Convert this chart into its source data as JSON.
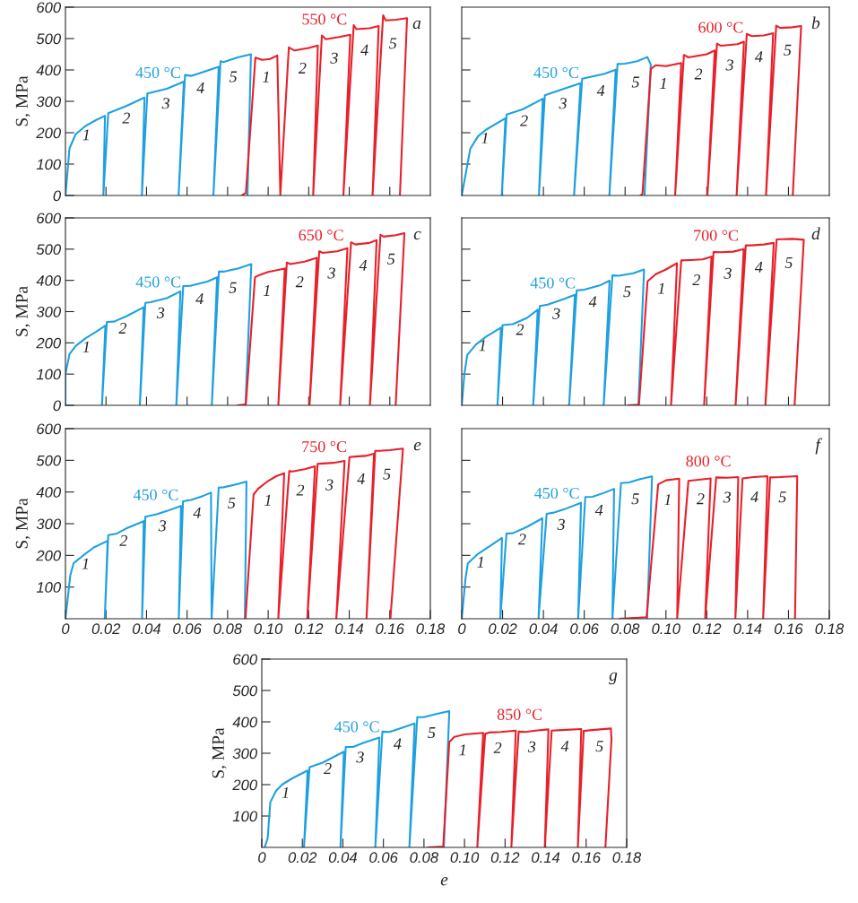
{
  "chart_data": [
    {
      "type": "line",
      "ylabel": "S, MPa",
      "xlim": [
        0,
        0.18
      ],
      "ylim": [
        0,
        600
      ],
      "tick_labels": "y",
      "xticks": [
        {
          "value": 0.02,
          "label": null
        },
        {
          "value": 0.04,
          "label": null
        },
        {
          "value": 0.06,
          "label": null
        },
        {
          "value": 0.08,
          "label": null
        },
        {
          "value": 0.1,
          "label": null
        },
        {
          "value": 0.12,
          "label": null
        },
        {
          "value": 0.14,
          "label": null
        },
        {
          "value": 0.16,
          "label": null
        }
      ],
      "yticks": [
        0,
        100,
        200,
        300,
        400,
        500,
        600
      ],
      "series": [
        {
          "name": "450 °C",
          "color": "#1ea0e0",
          "x": [
            0,
            0.002,
            0.005,
            0.01,
            0.015,
            0.0195,
            0.0187,
            0.0211,
            0.03,
            0.039,
            0.0377,
            0.0404,
            0.05,
            0.0584,
            0.0558,
            0.059,
            0.062,
            0.07,
            0.0756,
            0.073,
            0.0765,
            0.078,
            0.085,
            0.0915,
            0.0898
          ],
          "values": [
            0,
            150,
            195,
            222,
            240,
            254,
            0,
            262,
            285,
            312,
            0,
            325,
            340,
            363,
            0,
            384,
            381,
            398,
            410,
            0,
            428,
            425,
            440,
            450,
            0
          ]
        },
        {
          "name": "550 °C",
          "color": "#e8202a",
          "x": [
            0.087,
            0.089,
            0.0937,
            0.097,
            0.101,
            0.1045,
            0.106,
            0.1102,
            0.113,
            0.12,
            0.1245,
            0.1222,
            0.1265,
            0.1285,
            0.135,
            0.1405,
            0.1371,
            0.1422,
            0.1435,
            0.15,
            0.1545,
            0.1515,
            0.1567,
            0.158,
            0.163,
            0.1685,
            0.165
          ],
          "values": [
            0,
            8,
            439,
            432,
            435,
            446,
            0,
            472,
            462,
            470,
            478,
            0,
            510,
            498,
            505,
            512,
            0,
            543,
            530,
            533,
            540,
            0,
            574,
            558,
            560,
            565,
            0
          ]
        }
      ],
      "annotations": [
        "a",
        "1",
        "2",
        "3",
        "4",
        "5",
        "1",
        "2",
        "3",
        "4",
        "5"
      ]
    },
    {
      "type": "line",
      "xlim": [
        0,
        0.18
      ],
      "ylim": [
        0,
        600
      ],
      "tick_labels": false,
      "xticks": [
        {
          "value": 0.02,
          "label": null
        },
        {
          "value": 0.04,
          "label": null
        },
        {
          "value": 0.06,
          "label": null
        },
        {
          "value": 0.08,
          "label": null
        },
        {
          "value": 0.1,
          "label": null
        },
        {
          "value": 0.12,
          "label": null
        },
        {
          "value": 0.14,
          "label": null
        },
        {
          "value": 0.16,
          "label": null
        }
      ],
      "yticks": [
        {
          "value": 100,
          "label": null
        },
        {
          "value": 200,
          "label": null
        },
        {
          "value": 300,
          "label": null
        },
        {
          "value": 400,
          "label": null
        },
        {
          "value": 500,
          "label": null
        }
      ],
      "series": [
        {
          "name": "450 °C",
          "color": "#1ea0e0",
          "x": [
            0,
            0.0042,
            0.008,
            0.012,
            0.0214,
            0.0196,
            0.022,
            0.03,
            0.0397,
            0.0378,
            0.0407,
            0.05,
            0.0582,
            0.055,
            0.059,
            0.07,
            0.0754,
            0.0723,
            0.0763,
            0.08,
            0.086,
            0.0909,
            0.0926,
            0.0895
          ],
          "values": [
            0,
            149,
            189,
            210,
            246,
            0,
            258,
            275,
            308,
            0,
            319,
            340,
            358,
            0,
            372,
            388,
            401,
            0,
            419,
            420,
            428,
            441,
            417,
            0
          ]
        },
        {
          "name": "600 °C",
          "color": "#e8202a",
          "x": [
            0.0875,
            0.0885,
            0.0926,
            0.095,
            0.1,
            0.1075,
            0.1045,
            0.1088,
            0.111,
            0.12,
            0.1239,
            0.1203,
            0.125,
            0.127,
            0.135,
            0.1382,
            0.1346,
            0.1396,
            0.142,
            0.148,
            0.1525,
            0.149,
            0.154,
            0.156,
            0.162,
            0.1662,
            0.1621
          ],
          "values": [
            0,
            5,
            403,
            415,
            412,
            422,
            0,
            448,
            440,
            450,
            462,
            0,
            484,
            477,
            482,
            490,
            0,
            515,
            508,
            510,
            517,
            0,
            541,
            534,
            536,
            540,
            0
          ]
        }
      ],
      "annotations": [
        "b",
        "1",
        "2",
        "3",
        "4",
        "5",
        "1",
        "2",
        "3",
        "4",
        "5"
      ]
    },
    {
      "type": "line",
      "ylabel": "S, MPa",
      "xlim": [
        0,
        0.18
      ],
      "ylim": [
        0,
        600
      ],
      "tick_labels": "y",
      "xticks": [
        {
          "value": 0.02,
          "label": null
        },
        {
          "value": 0.04,
          "label": null
        },
        {
          "value": 0.06,
          "label": null
        },
        {
          "value": 0.08,
          "label": null
        },
        {
          "value": 0.1,
          "label": null
        },
        {
          "value": 0.12,
          "label": null
        },
        {
          "value": 0.14,
          "label": null
        },
        {
          "value": 0.16,
          "label": null
        }
      ],
      "yticks": [
        0,
        100,
        200,
        300,
        400,
        500,
        600
      ],
      "series": [
        {
          "name": "450 °C",
          "color": "#1ea0e0",
          "x": [
            0,
            0,
            0.002,
            0.005,
            0.01,
            0.015,
            0.0197,
            0.018,
            0.0204,
            0.024,
            0.03,
            0.0386,
            0.0367,
            0.0394,
            0.042,
            0.05,
            0.0567,
            0.0547,
            0.0581,
            0.062,
            0.07,
            0.0748,
            0.0722,
            0.0757,
            0.078,
            0.085,
            0.0917,
            0.0888
          ],
          "values": [
            0,
            100,
            164,
            190,
            215,
            235,
            255,
            0,
            267,
            268,
            285,
            314,
            0,
            328,
            330,
            343,
            365,
            0,
            382,
            383,
            396,
            410,
            0,
            428,
            428,
            438,
            452,
            0
          ]
        },
        {
          "name": "650 °C",
          "color": "#e8202a",
          "x": [
            0.085,
            0.089,
            0.0935,
            0.096,
            0.1,
            0.1082,
            0.105,
            0.1092,
            0.111,
            0.118,
            0.124,
            0.1204,
            0.1252,
            0.127,
            0.134,
            0.1391,
            0.1355,
            0.1409,
            0.143,
            0.15,
            0.1535,
            0.1502,
            0.1554,
            0.157,
            0.163,
            0.1672,
            0.1629
          ],
          "values": [
            0,
            3,
            410,
            418,
            427,
            438,
            0,
            457,
            452,
            460,
            472,
            0,
            493,
            488,
            493,
            503,
            0,
            522,
            515,
            520,
            529,
            0,
            546,
            540,
            545,
            551,
            0
          ]
        }
      ],
      "annotations": [
        "c",
        "1",
        "2",
        "3",
        "4",
        "5",
        "1",
        "2",
        "3",
        "4",
        "5"
      ]
    },
    {
      "type": "line",
      "xlim": [
        0,
        0.18
      ],
      "ylim": [
        0,
        600
      ],
      "tick_labels": false,
      "xticks": [
        {
          "value": 0.02,
          "label": null
        },
        {
          "value": 0.04,
          "label": null
        },
        {
          "value": 0.06,
          "label": null
        },
        {
          "value": 0.08,
          "label": null
        },
        {
          "value": 0.1,
          "label": null
        },
        {
          "value": 0.12,
          "label": null
        },
        {
          "value": 0.14,
          "label": null
        },
        {
          "value": 0.16,
          "label": null
        }
      ],
      "yticks": [
        {
          "value": 100,
          "label": null
        },
        {
          "value": 200,
          "label": null
        },
        {
          "value": 300,
          "label": null
        },
        {
          "value": 400,
          "label": null
        },
        {
          "value": 500,
          "label": null
        }
      ],
      "series": [
        {
          "name": "450 °C",
          "color": "#1ea0e0",
          "x": [
            0,
            0.0013,
            0.0027,
            0.007,
            0.012,
            0.0192,
            0.0175,
            0.02,
            0.025,
            0.032,
            0.0372,
            0.035,
            0.0382,
            0.042,
            0.05,
            0.0554,
            0.0526,
            0.0563,
            0.06,
            0.068,
            0.0724,
            0.0695,
            0.0738,
            0.077,
            0.084,
            0.0893,
            0.0865
          ],
          "values": [
            0,
            100,
            161,
            195,
            220,
            249,
            0,
            257,
            260,
            280,
            306,
            0,
            318,
            322,
            340,
            354,
            0,
            368,
            370,
            385,
            399,
            0,
            416,
            415,
            423,
            435,
            0
          ]
        },
        {
          "name": "700 °C",
          "color": "#e8202a",
          "x": [
            0.0815,
            0.0868,
            0.091,
            0.095,
            0.1,
            0.1054,
            0.1025,
            0.1075,
            0.112,
            0.118,
            0.1223,
            0.1187,
            0.1233,
            0.127,
            0.133,
            0.1381,
            0.1341,
            0.1391,
            0.142,
            0.148,
            0.1528,
            0.1487,
            0.1542,
            0.157,
            0.162,
            0.1675,
            0.163
          ],
          "values": [
            0,
            2,
            397,
            420,
            435,
            455,
            0,
            464,
            465,
            467,
            476,
            0,
            491,
            490,
            492,
            500,
            0,
            512,
            512,
            515,
            520,
            0,
            531,
            532,
            533,
            530,
            0
          ]
        }
      ],
      "annotations": [
        "d",
        "1",
        "2",
        "3",
        "4",
        "5",
        "1",
        "2",
        "3",
        "4",
        "5"
      ]
    },
    {
      "type": "line",
      "ylabel": "S, MPa",
      "xlim": [
        0,
        0.18
      ],
      "ylim": [
        0,
        600
      ],
      "xticks": [
        0,
        0.02,
        0.04,
        0.06,
        0.08,
        {
          "value": 0.1,
          "label": "0.10"
        },
        0.12,
        0.14,
        0.16,
        0.18
      ],
      "yticks": [
        100,
        200,
        300,
        400,
        500,
        600
      ],
      "series": [
        {
          "name": "450 °C",
          "color": "#1ea0e0",
          "x": [
            0,
            0.0024,
            0.004,
            0.0086,
            0.014,
            0.0208,
            0.0194,
            0.0211,
            0.025,
            0.03,
            0.0386,
            0.0378,
            0.0394,
            0.045,
            0.05,
            0.057,
            0.0559,
            0.058,
            0.062,
            0.068,
            0.0718,
            0.0721,
            0.0756,
            0.078,
            0.085,
            0.0893,
            0.0885
          ],
          "values": [
            0,
            137,
            175,
            199,
            225,
            246,
            0,
            264,
            268,
            285,
            308,
            0,
            322,
            330,
            340,
            356,
            0,
            371,
            375,
            388,
            398,
            0,
            414,
            415,
            425,
            433,
            0
          ]
        },
        {
          "name": "750 °C",
          "color": "#e8202a",
          "x": [
            0.0888,
            0.0928,
            0.095,
            0.1,
            0.104,
            0.1079,
            0.105,
            0.1104,
            0.112,
            0.118,
            0.1231,
            0.1193,
            0.1244,
            0.127,
            0.132,
            0.1377,
            0.1336,
            0.1401,
            0.143,
            0.148,
            0.1522,
            0.1485,
            0.1528,
            0.155,
            0.16,
            0.1665,
            0.1603
          ],
          "values": [
            0,
            392,
            410,
            435,
            450,
            459,
            0,
            466,
            465,
            472,
            481,
            0,
            489,
            490,
            492,
            498,
            0,
            510,
            512,
            514,
            521,
            0,
            530,
            530,
            532,
            537,
            0
          ]
        }
      ],
      "annotations": [
        "e",
        "1",
        "2",
        "3",
        "4",
        "5",
        "1",
        "2",
        "3",
        "4",
        "5"
      ]
    },
    {
      "type": "line",
      "xlim": [
        0,
        0.18
      ],
      "ylim": [
        0,
        600
      ],
      "tick_labels": "x",
      "xticks": [
        0,
        0.02,
        0.04,
        0.06,
        0.08,
        {
          "value": 0.1,
          "label": "0.10"
        },
        0.12,
        0.14,
        0.16,
        0.18
      ],
      "yticks": [
        {
          "value": 100,
          "label": null
        },
        {
          "value": 200,
          "label": null
        },
        {
          "value": 300,
          "label": null
        },
        {
          "value": 400,
          "label": null
        },
        {
          "value": 500,
          "label": null
        }
      ],
      "series": [
        {
          "name": "450 °C",
          "color": "#1ea0e0",
          "x": [
            0,
            0.0019,
            0.003,
            0.008,
            0.014,
            0.0197,
            0.0189,
            0.0219,
            0.025,
            0.032,
            0.0395,
            0.0376,
            0.0416,
            0.045,
            0.05,
            0.0584,
            0.057,
            0.0605,
            0.064,
            0.07,
            0.0746,
            0.0738,
            0.078,
            0.082,
            0.087,
            0.0932,
            0.0908
          ],
          "values": [
            0,
            129,
            175,
            205,
            230,
            255,
            0,
            269,
            270,
            290,
            317,
            0,
            331,
            335,
            345,
            366,
            0,
            384,
            385,
            398,
            410,
            0,
            428,
            430,
            440,
            449,
            0
          ]
        },
        {
          "name": "800 °C",
          "color": "#e8202a",
          "x": [
            0.0773,
            0.0905,
            0.0962,
            0.1,
            0.1065,
            0.1055,
            0.111,
            0.118,
            0.1219,
            0.1192,
            0.1246,
            0.13,
            0.1354,
            0.134,
            0.1375,
            0.143,
            0.1497,
            0.1476,
            0.151,
            0.156,
            0.1643,
            0.1632
          ],
          "values": [
            0,
            5,
            424,
            437,
            442,
            0,
            435,
            440,
            443,
            0,
            446,
            445,
            447,
            0,
            443,
            447,
            450,
            0,
            446,
            447,
            450,
            0
          ]
        }
      ],
      "annotations": [
        "f",
        "1",
        "2",
        "3",
        "4",
        "5",
        "1",
        "2",
        "3",
        "4",
        "5"
      ]
    },
    {
      "type": "line",
      "xlabel": "e",
      "ylabel": "S, MPa",
      "xlim": [
        0,
        0.18
      ],
      "ylim": [
        0,
        600
      ],
      "xticks": [
        0,
        0.02,
        0.04,
        0.06,
        0.08,
        {
          "value": 0.1,
          "label": "0.10"
        },
        0.12,
        0.14,
        0.16,
        0.18
      ],
      "yticks": [
        100,
        200,
        300,
        400,
        500,
        600
      ],
      "series": [
        {
          "name": "450 °C",
          "color": "#1ea0e0",
          "x": [
            0.0014,
            0.0029,
            0.0042,
            0.007,
            0.01,
            0.015,
            0.0226,
            0.0208,
            0.0236,
            0.03,
            0.036,
            0.0405,
            0.0388,
            0.0414,
            0.045,
            0.05,
            0.058,
            0.056,
            0.0595,
            0.063,
            0.07,
            0.0754,
            0.0728,
            0.0767,
            0.08,
            0.086,
            0.0925,
            0.0898
          ],
          "values": [
            0,
            29,
            144,
            180,
            200,
            220,
            245,
            0,
            256,
            270,
            290,
            305,
            0,
            320,
            320,
            333,
            350,
            0,
            369,
            368,
            383,
            395,
            0,
            415,
            415,
            425,
            434,
            0
          ]
        },
        {
          "name": "850 °C",
          "color": "#e8202a",
          "x": [
            0.0819,
            0.0895,
            0.0925,
            0.095,
            0.1,
            0.1092,
            0.1063,
            0.1102,
            0.112,
            0.118,
            0.1253,
            0.1231,
            0.1267,
            0.13,
            0.135,
            0.1414,
            0.1396,
            0.143,
            0.148,
            0.1576,
            0.1559,
            0.1588,
            0.163,
            0.1722,
            0.1725,
            0.1695
          ],
          "values": [
            0,
            3,
            336,
            352,
            360,
            365,
            0,
            362,
            366,
            368,
            372,
            0,
            369,
            368,
            372,
            376,
            0,
            372,
            374,
            377,
            0,
            371,
            374,
            379,
            345,
            0
          ]
        }
      ],
      "annotations": [
        "g",
        "1",
        "2",
        "3",
        "4",
        "5",
        "1",
        "2",
        "3",
        "4",
        "5"
      ]
    }
  ]
}
